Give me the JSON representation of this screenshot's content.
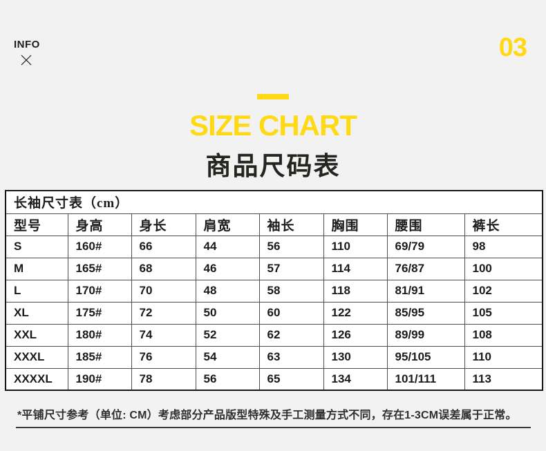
{
  "page": {
    "info_label": "INFO",
    "page_number": "03",
    "title_en": "SIZE CHART",
    "title_zh": "商品尺码表"
  },
  "colors": {
    "accent_yellow": "#ffd913",
    "ink": "#1c1c1c",
    "page_bg": "#f2f2f2"
  },
  "size_table": {
    "caption": "长袖尺寸表（cm）",
    "columns": [
      "型号",
      "身高",
      "身长",
      "肩宽",
      "袖长",
      "胸围",
      "腰围",
      "裤长"
    ],
    "rows": [
      [
        "S",
        "160#",
        "66",
        "44",
        "56",
        "110",
        "69/79",
        "98"
      ],
      [
        "M",
        "165#",
        "68",
        "46",
        "57",
        "114",
        "76/87",
        "100"
      ],
      [
        "L",
        "170#",
        "70",
        "48",
        "58",
        "118",
        "81/91",
        "102"
      ],
      [
        "XL",
        "175#",
        "72",
        "50",
        "60",
        "122",
        "85/95",
        "105"
      ],
      [
        "XXL",
        "180#",
        "74",
        "52",
        "62",
        "126",
        "89/99",
        "108"
      ],
      [
        "XXXL",
        "185#",
        "76",
        "54",
        "63",
        "130",
        "95/105",
        "110"
      ],
      [
        "XXXXL",
        "190#",
        "78",
        "56",
        "65",
        "134",
        "101/111",
        "113"
      ]
    ]
  },
  "footnote": "*平铺尺寸参考（单位: CM）考虑部分产品版型特殊及手工测量方式不同，存在1-3CM误差属于正常。"
}
